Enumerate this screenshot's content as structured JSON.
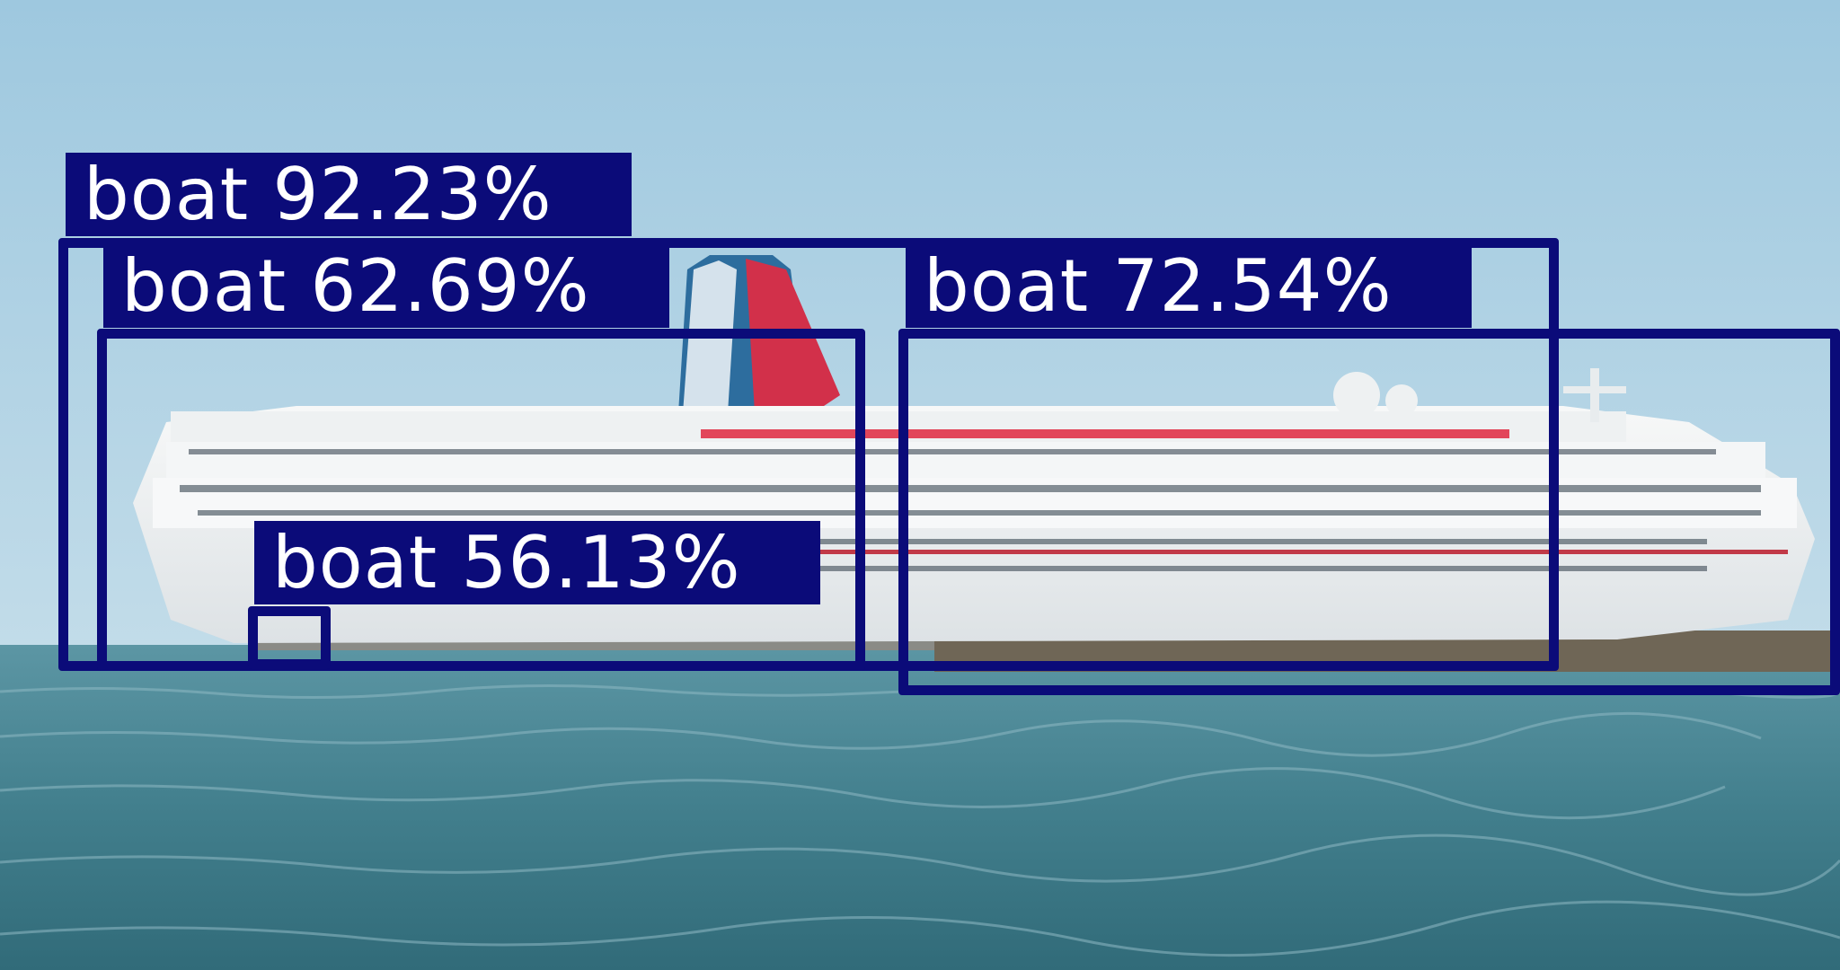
{
  "image": {
    "scene": "cruise ship on the sea",
    "colors": {
      "sky": "#a9cfe3",
      "sea": "#3f7f8c",
      "ship_hull": "#f2f4f5",
      "funnel_red": "#d2304a",
      "funnel_blue": "#2d6d9e",
      "box": "#0b0b79",
      "label_text": "#ffffff"
    }
  },
  "detections": [
    {
      "label": "boat 92.23%",
      "class": "boat",
      "confidence": 92.23
    },
    {
      "label": "boat 62.69%",
      "class": "boat",
      "confidence": 62.69
    },
    {
      "label": "boat 72.54%",
      "class": "boat",
      "confidence": 72.54
    },
    {
      "label": "boat 56.13%",
      "class": "boat",
      "confidence": 56.13
    }
  ]
}
